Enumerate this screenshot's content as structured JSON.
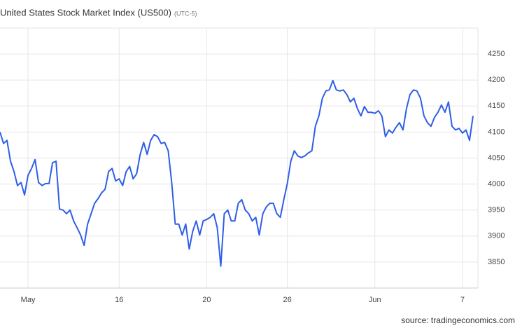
{
  "chart_data": {
    "type": "line",
    "title": "United States Stock Market Index (US500)",
    "subtitle": "(UTC-5)",
    "source": "source: tradingeconomics.com",
    "categories": [
      null,
      null,
      null,
      null,
      null,
      null,
      null,
      null,
      "May",
      null,
      null,
      null,
      null,
      null,
      null,
      null,
      null,
      null,
      null,
      null,
      null,
      null,
      null,
      null,
      null,
      null,
      null,
      null,
      null,
      null,
      null,
      null,
      null,
      null,
      "16",
      null,
      null,
      null,
      null,
      null,
      null,
      null,
      null,
      null,
      null,
      null,
      null,
      null,
      null,
      null,
      null,
      null,
      null,
      null,
      null,
      null,
      null,
      null,
      null,
      "20",
      null,
      null,
      null,
      null,
      null,
      null,
      null,
      null,
      null,
      null,
      null,
      null,
      null,
      null,
      null,
      null,
      null,
      null,
      null,
      null,
      null,
      null,
      "26",
      null,
      null,
      null,
      null,
      null,
      null,
      null,
      null,
      null,
      null,
      null,
      null,
      null,
      null,
      null,
      null,
      null,
      null,
      null,
      null,
      null,
      null,
      null,
      null,
      "Jun",
      null,
      null,
      null,
      null,
      null,
      null,
      null,
      null,
      null,
      null,
      null,
      null,
      null,
      null,
      null,
      null,
      null,
      null,
      null,
      null,
      null,
      null,
      null,
      null,
      "7",
      null,
      null,
      null
    ],
    "values": [
      4100,
      4078,
      4084,
      4044,
      4024,
      3997,
      4003,
      3979,
      4017,
      4030,
      4047,
      4003,
      3997,
      4001,
      4001,
      4041,
      4044,
      3952,
      3950,
      3943,
      3950,
      3929,
      3916,
      3902,
      3882,
      3923,
      3943,
      3963,
      3972,
      3983,
      3990,
      4024,
      4030,
      4006,
      4010,
      3997,
      4024,
      4034,
      4010,
      4020,
      4057,
      4080,
      4057,
      4084,
      4095,
      4091,
      4078,
      4080,
      4064,
      4003,
      3923,
      3923,
      3902,
      3923,
      3875,
      3909,
      3929,
      3902,
      3929,
      3932,
      3936,
      3943,
      3916,
      3842,
      3943,
      3950,
      3929,
      3929,
      3963,
      3970,
      3950,
      3943,
      3929,
      3936,
      3902,
      3943,
      3956,
      3963,
      3963,
      3943,
      3936,
      3970,
      4001,
      4044,
      4064,
      4054,
      4051,
      4054,
      4060,
      4064,
      4111,
      4131,
      4165,
      4179,
      4181,
      4199,
      4181,
      4179,
      4181,
      4172,
      4158,
      4165,
      4145,
      4131,
      4149,
      4138,
      4138,
      4136,
      4141,
      4131,
      4091,
      4104,
      4098,
      4109,
      4118,
      4104,
      4145,
      4172,
      4181,
      4179,
      4165,
      4131,
      4118,
      4111,
      4128,
      4138,
      4152,
      4138,
      4158,
      4111,
      4104,
      4107,
      4098,
      4104,
      4084,
      4131
    ],
    "color": "#2f5fe8",
    "ylim": [
      3800,
      4300
    ],
    "yticks": [
      3850,
      3900,
      3950,
      4000,
      4050,
      4100,
      4150,
      4200,
      4250
    ],
    "grid": true
  }
}
